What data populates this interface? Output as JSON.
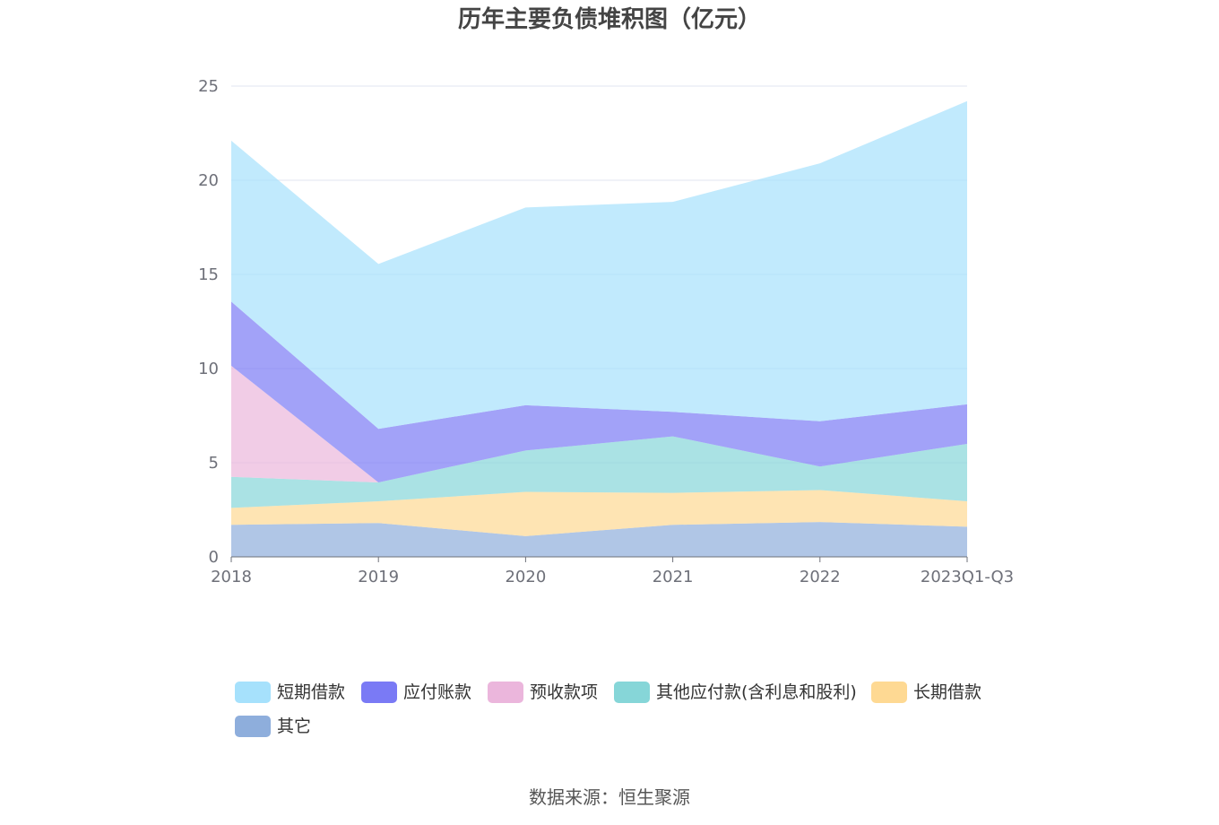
{
  "chart_data": {
    "type": "area",
    "stacked": true,
    "title": "历年主要负债堆积图（亿元）",
    "categories": [
      "2018",
      "2019",
      "2020",
      "2021",
      "2022",
      "2023Q1-Q3"
    ],
    "ylim": [
      0,
      25
    ],
    "yticks": [
      0,
      5,
      10,
      15,
      20,
      25
    ],
    "grid": true,
    "legend_position": "bottom",
    "series": [
      {
        "name": "其它",
        "color": "#8eaedc",
        "values": [
          1.7,
          1.8,
          1.1,
          1.7,
          1.85,
          1.6
        ]
      },
      {
        "name": "长期借款",
        "color": "#fed993",
        "values": [
          0.9,
          1.15,
          2.35,
          1.7,
          1.7,
          1.35
        ]
      },
      {
        "name": "其他应付款(含利息和股利)",
        "color": "#86d6d8",
        "values": [
          1.65,
          1.0,
          2.2,
          3.0,
          1.25,
          3.05
        ]
      },
      {
        "name": "预收款项",
        "color": "#ebb6dc",
        "values": [
          5.9,
          0.0,
          0.0,
          0.0,
          0.0,
          0.0
        ]
      },
      {
        "name": "应付账款",
        "color": "#7a7af5",
        "values": [
          3.4,
          2.85,
          2.4,
          1.3,
          2.4,
          2.1
        ]
      },
      {
        "name": "短期借款",
        "color": "#a6e1fc",
        "values": [
          8.55,
          8.75,
          10.5,
          11.15,
          13.7,
          16.1
        ]
      }
    ],
    "legend_order": [
      "短期借款",
      "应付账款",
      "预收款项",
      "其他应付款(含利息和股利)",
      "长期借款",
      "其它"
    ]
  },
  "footer": {
    "source": "数据来源：恒生聚源"
  }
}
